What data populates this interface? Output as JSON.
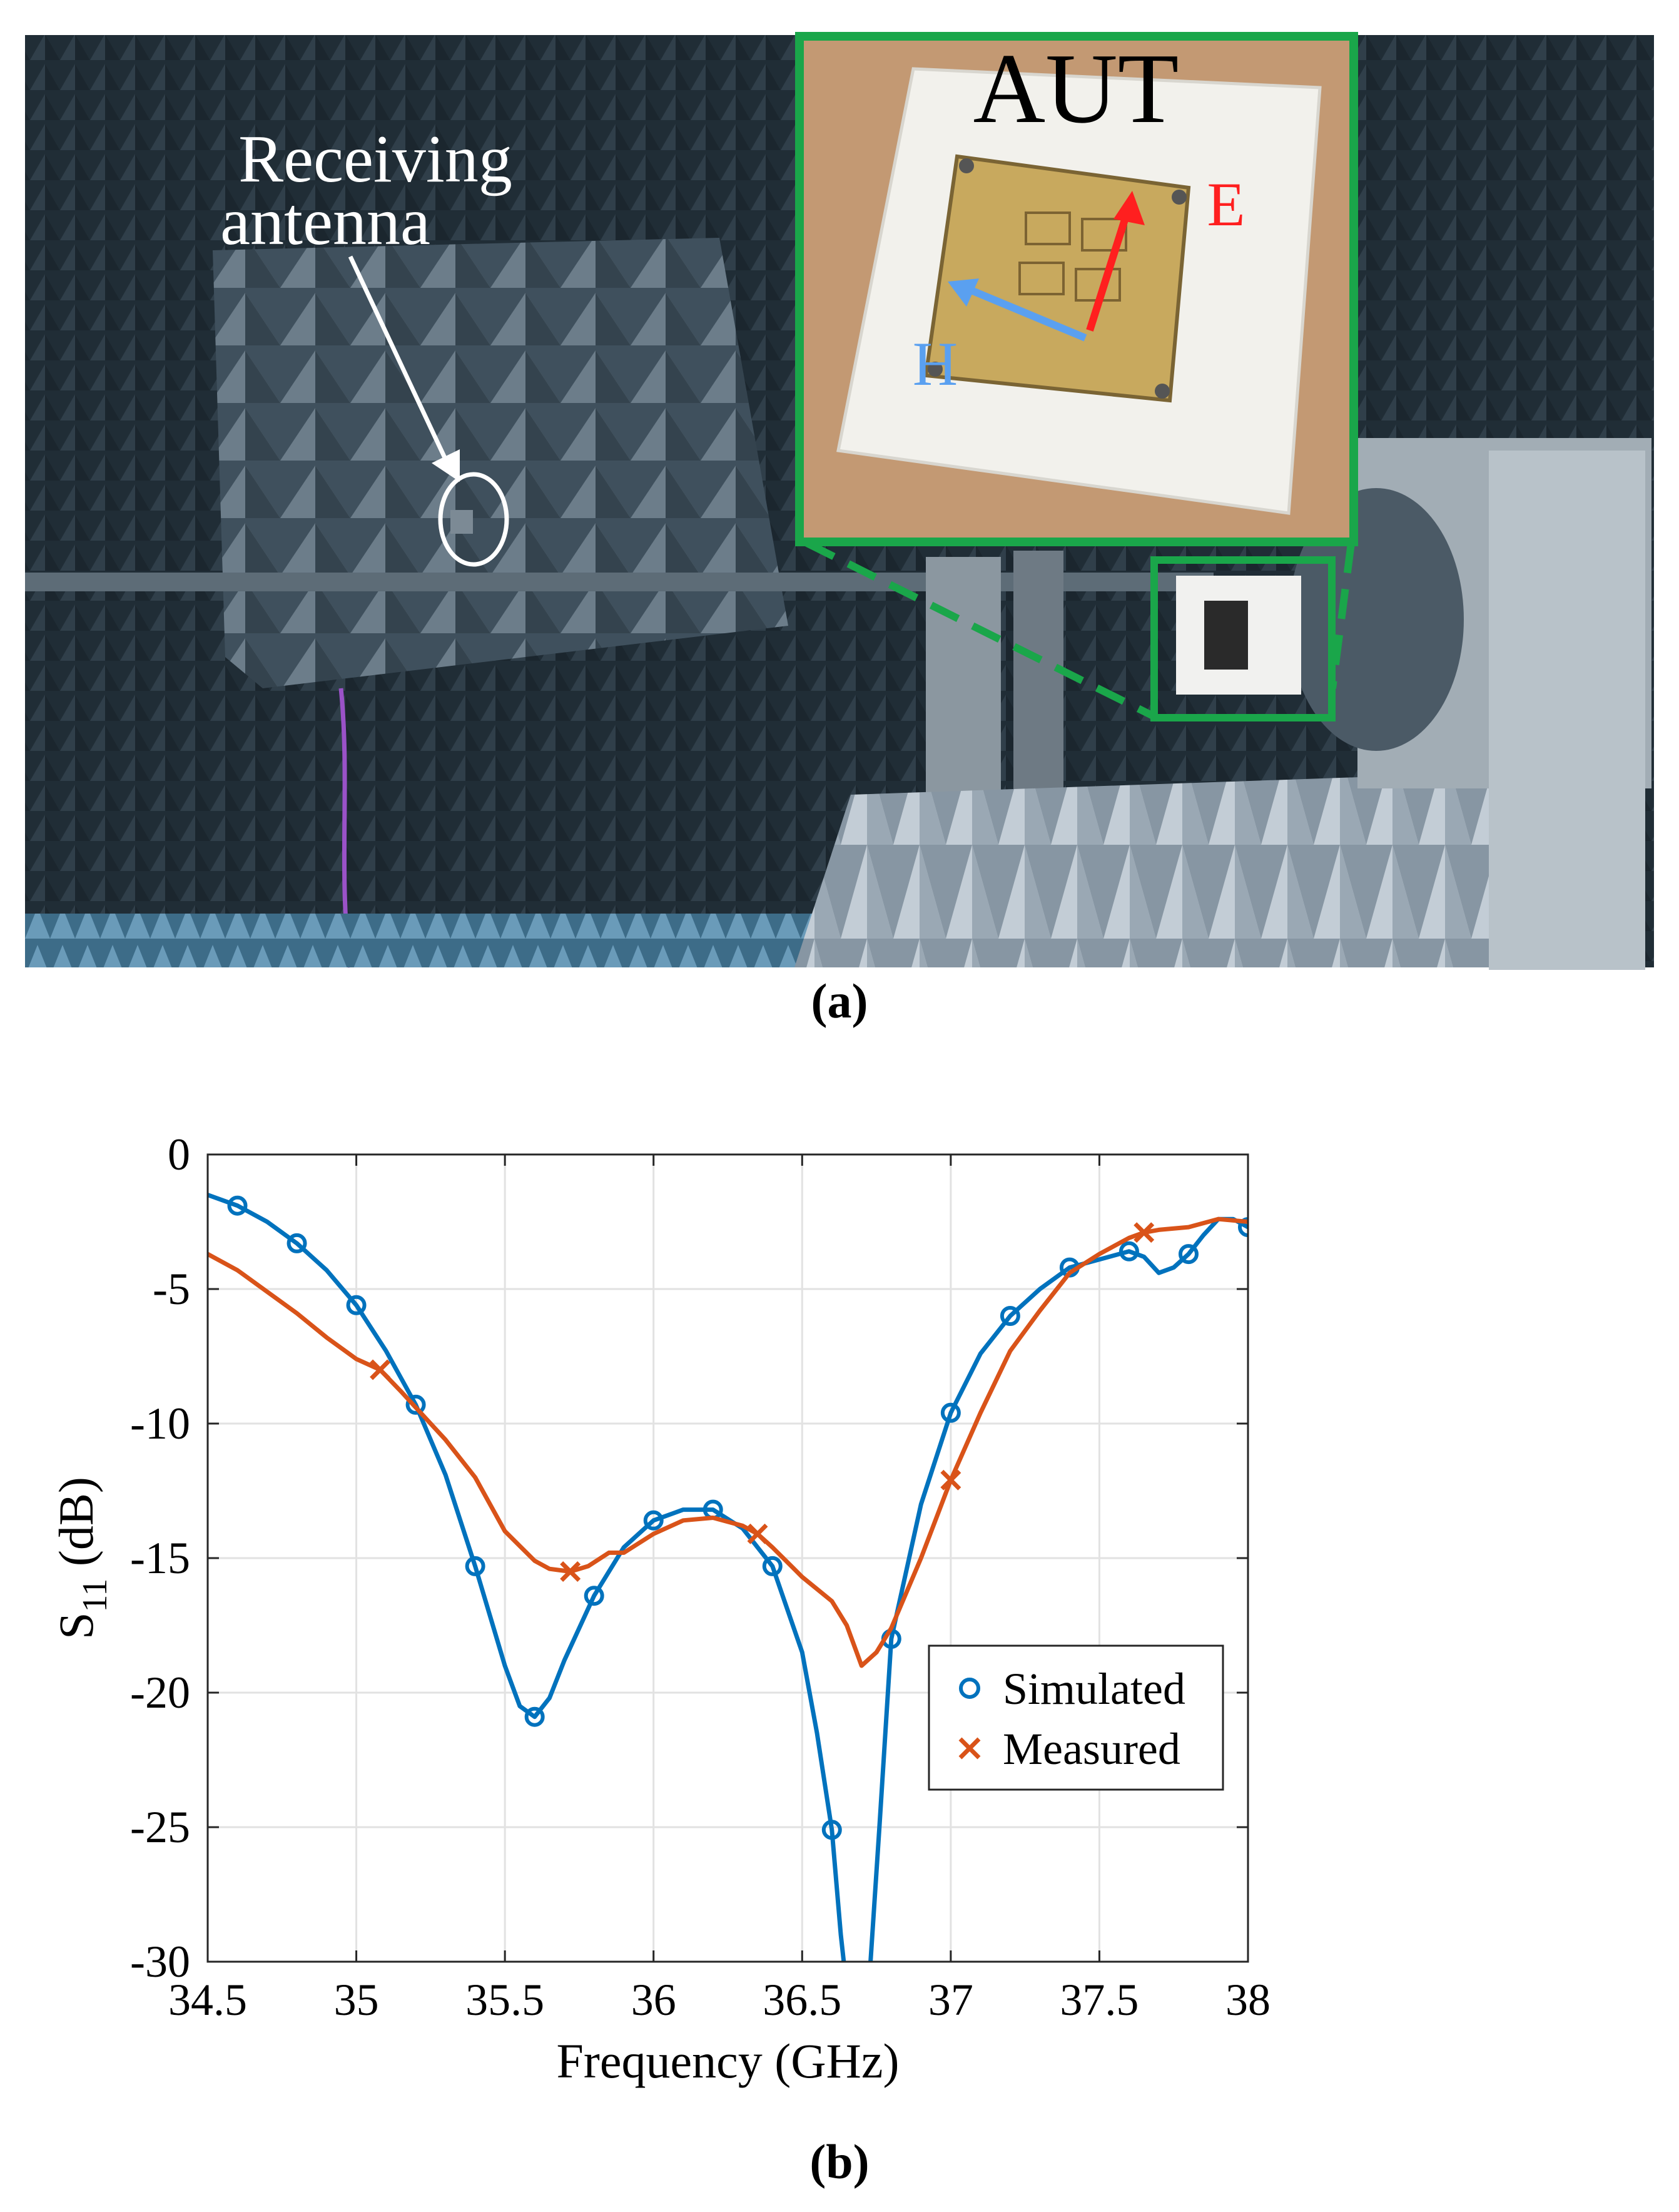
{
  "figure_a": {
    "caption": "(a)",
    "labels": {
      "receiving_line1": "Receiving",
      "receiving_line2": "antenna",
      "aut": "AUT",
      "e_field": "E",
      "h_field": "H"
    },
    "colors": {
      "inset_frame": "#1aa64a",
      "e_arrow": "#ff1f1f",
      "h_arrow": "#5aa0f0",
      "absorber_dark": "#2c3a44",
      "absorber_light": "#b7c4cf",
      "board_gold": "#c8a95e",
      "table_wood": "#c9a07a"
    }
  },
  "figure_b": {
    "caption": "(b)",
    "colors": {
      "simulated": "#0072BD",
      "measured": "#D95319",
      "grid": "#e2e2e2",
      "axes": "#262626"
    }
  },
  "chart_data": {
    "type": "line",
    "title": "",
    "xlabel": "Frequency (GHz)",
    "ylabel": "S11 (dB)",
    "ylabel_main": "S",
    "ylabel_sub": "11",
    "ylabel_unit": "(dB)",
    "xlim": [
      34.5,
      38
    ],
    "ylim": [
      -30,
      0
    ],
    "xticks": [
      34.5,
      35,
      35.5,
      36,
      36.5,
      37,
      37.5,
      38
    ],
    "xtick_labels": [
      "34.5",
      "35",
      "35.5",
      "36",
      "36.5",
      "37",
      "37.5",
      "38"
    ],
    "yticks": [
      0,
      -5,
      -10,
      -15,
      -20,
      -25,
      -30
    ],
    "ytick_labels": [
      "0",
      "-5",
      "-10",
      "-15",
      "-20",
      "-25",
      "-30"
    ],
    "grid": true,
    "legend_position": "lower-right",
    "series": [
      {
        "name": "Simulated",
        "marker": "circle",
        "color": "#0072BD",
        "x": [
          34.5,
          34.6,
          34.7,
          34.8,
          34.9,
          35.0,
          35.1,
          35.2,
          35.3,
          35.4,
          35.5,
          35.55,
          35.6,
          35.65,
          35.7,
          35.8,
          35.9,
          36.0,
          36.1,
          36.2,
          36.3,
          36.4,
          36.5,
          36.55,
          36.6,
          36.63,
          36.66,
          36.7,
          36.73,
          36.76,
          36.8,
          36.9,
          37.0,
          37.1,
          37.2,
          37.3,
          37.4,
          37.5,
          37.6,
          37.65,
          37.7,
          37.75,
          37.8,
          37.85,
          37.9,
          37.95,
          38.0
        ],
        "y": [
          -1.5,
          -1.9,
          -2.5,
          -3.3,
          -4.3,
          -5.6,
          -7.3,
          -9.3,
          -11.9,
          -15.3,
          -19.0,
          -20.5,
          -20.9,
          -20.2,
          -18.8,
          -16.4,
          -14.6,
          -13.6,
          -13.2,
          -13.2,
          -13.9,
          -15.3,
          -18.5,
          -21.5,
          -25.1,
          -29.0,
          -32.0,
          -34.0,
          -30.0,
          -25.0,
          -18.0,
          -13.0,
          -9.6,
          -7.4,
          -6.0,
          -5.0,
          -4.2,
          -3.9,
          -3.6,
          -3.8,
          -4.4,
          -4.2,
          -3.7,
          -3.0,
          -2.4,
          -2.4,
          -2.7
        ],
        "marker_x": [
          34.6,
          34.8,
          35.0,
          35.2,
          35.4,
          35.6,
          35.8,
          36.0,
          36.2,
          36.4,
          36.6,
          36.8,
          37.0,
          37.2,
          37.4,
          37.6,
          37.8,
          38.0
        ],
        "marker_y": [
          -1.9,
          -3.3,
          -5.6,
          -9.3,
          -15.3,
          -20.9,
          -16.4,
          -13.6,
          -13.2,
          -15.3,
          -25.1,
          -18.0,
          -9.6,
          -6.0,
          -4.2,
          -3.6,
          -3.7,
          -2.7
        ]
      },
      {
        "name": "Measured",
        "marker": "cross",
        "color": "#D95319",
        "x": [
          34.5,
          34.6,
          34.7,
          34.8,
          34.9,
          35.0,
          35.08,
          35.15,
          35.2,
          35.3,
          35.4,
          35.5,
          35.6,
          35.65,
          35.72,
          35.78,
          35.85,
          35.9,
          36.0,
          36.1,
          36.2,
          36.3,
          36.35,
          36.4,
          36.5,
          36.6,
          36.65,
          36.7,
          36.75,
          36.8,
          36.9,
          37.0,
          37.1,
          37.2,
          37.3,
          37.4,
          37.5,
          37.6,
          37.65,
          37.7,
          37.8,
          37.9,
          38.0
        ],
        "y": [
          -3.7,
          -4.3,
          -5.1,
          -5.9,
          -6.8,
          -7.6,
          -8.0,
          -8.8,
          -9.4,
          -10.6,
          -12.0,
          -14.0,
          -15.1,
          -15.4,
          -15.5,
          -15.3,
          -14.8,
          -14.8,
          -14.1,
          -13.6,
          -13.5,
          -13.8,
          -14.1,
          -14.6,
          -15.7,
          -16.6,
          -17.5,
          -19.0,
          -18.5,
          -17.6,
          -15.0,
          -12.1,
          -9.6,
          -7.3,
          -5.8,
          -4.4,
          -3.7,
          -3.1,
          -2.9,
          -2.8,
          -2.7,
          -2.4,
          -2.5
        ],
        "marker_x": [
          35.08,
          35.72,
          36.35,
          37.0,
          37.65
        ],
        "marker_y": [
          -8.0,
          -15.5,
          -14.1,
          -12.1,
          -2.9
        ]
      }
    ]
  }
}
